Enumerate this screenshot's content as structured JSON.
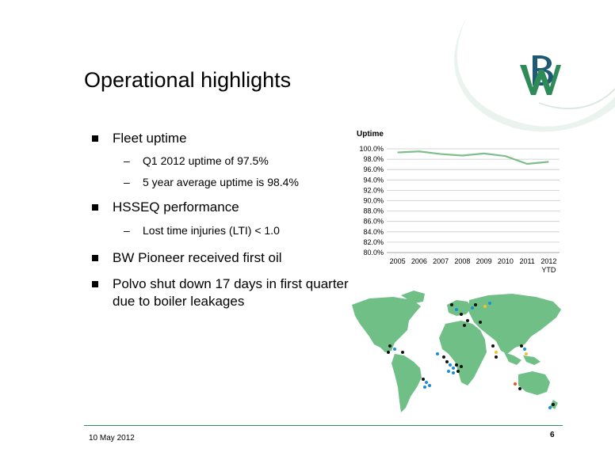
{
  "slide": {
    "title": "Operational highlights",
    "date": "10 May 2012",
    "page": "6"
  },
  "bullets": [
    {
      "text": "Fleet uptime",
      "level": 1
    },
    {
      "text": "Q1 2012 uptime of 97.5%",
      "level": 2
    },
    {
      "text": "5 year average uptime is 98.4%",
      "level": 2
    },
    {
      "text": "HSSEQ performance",
      "level": 1
    },
    {
      "text": "Lost time injuries (LTI) < 1.0",
      "level": 2
    },
    {
      "text": "BW Pioneer received first oil",
      "level": 1
    },
    {
      "text": "Polvo shut down 17 days in first quarter due to boiler leakages",
      "level": 1
    }
  ],
  "chart_data": {
    "type": "line",
    "title": "Uptime",
    "categories": [
      "2005",
      "2006",
      "2007",
      "2008",
      "2009",
      "2010",
      "2011",
      "2012\nYTD"
    ],
    "series": [
      {
        "values": [
          99.3,
          99.5,
          99.0,
          98.7,
          99.1,
          98.6,
          97.1,
          97.5
        ]
      }
    ],
    "ylim": [
      80,
      100
    ],
    "yticks": [
      "80.0%",
      "82.0%",
      "84.0%",
      "86.0%",
      "88.0%",
      "90.0%",
      "92.0%",
      "94.0%",
      "96.0%",
      "98.0%",
      "100.0%"
    ],
    "grid": true,
    "legend": "none",
    "line_color": "#7dbf8a"
  },
  "colors": {
    "map_land": "#6fbf86",
    "accent": "#1e5a73",
    "footer_line": "#2f8f5a"
  },
  "icons": {
    "logo": "bw-logo-icon",
    "map": "world-map-icon"
  }
}
